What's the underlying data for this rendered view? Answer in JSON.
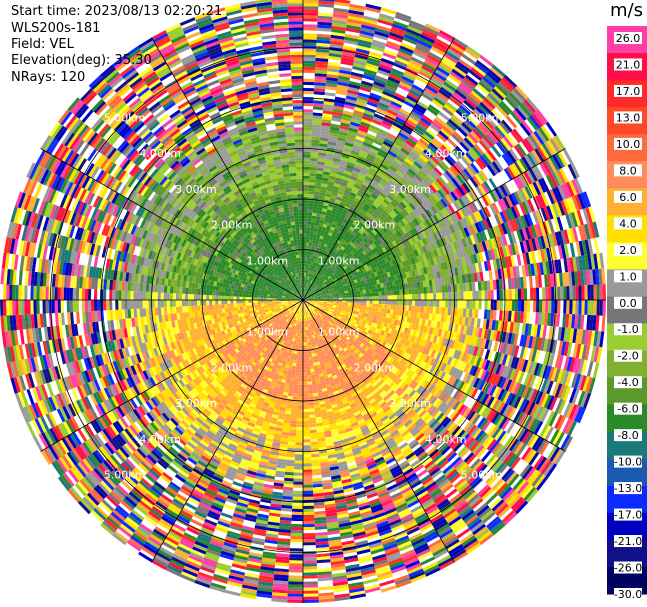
{
  "header": {
    "start_time": "Start time: 2023/08/13 02:20:21",
    "instrument": "WLS200s-181",
    "field": "Field: VEL",
    "elevation": "Elevation(deg): 35.30",
    "nrays": "NRays: 120"
  },
  "colorbar": {
    "title": "m/s",
    "ticks": [
      "26.0",
      "21.0",
      "17.0",
      "13.0",
      "10.0",
      "8.0",
      "6.0",
      "4.0",
      "2.0",
      "1.0",
      "0.0",
      "-1.0",
      "-2.0",
      "-4.0",
      "-6.0",
      "-8.0",
      "-10.0",
      "-13.0",
      "-17.0",
      "-21.0",
      "-26.0",
      "-30.0"
    ],
    "colors": [
      "#ff3fa6",
      "#ff0e4a",
      "#ff2a2a",
      "#ff4a28",
      "#ff6a3a",
      "#ff8c5a",
      "#ffb030",
      "#ffe000",
      "#ffff30",
      "#9a9a9a",
      "#777777",
      "#9acd32",
      "#80b030",
      "#5a9a2a",
      "#2a8a2a",
      "#1a7a7a",
      "#1a5ab0",
      "#0a2aff",
      "#0000c0",
      "#10108a",
      "#000060"
    ]
  },
  "chart_data": {
    "type": "ppi",
    "field": "VEL",
    "units": "m/s",
    "range_rings_km": [
      1.0,
      2.0,
      3.0,
      4.0,
      5.0
    ],
    "range_ring_labels": [
      "1.00km",
      "2.00km",
      "3.00km",
      "4.00km",
      "5.00km"
    ],
    "max_range_km": 6.0,
    "nrays": 120,
    "velocity_pattern": {
      "inner_north": "green, negative approx -2 to -6 m/s",
      "inner_south": "yellow/orange/salmon, positive approx 2 to 8 m/s",
      "outer": "noisy, full color range"
    }
  }
}
